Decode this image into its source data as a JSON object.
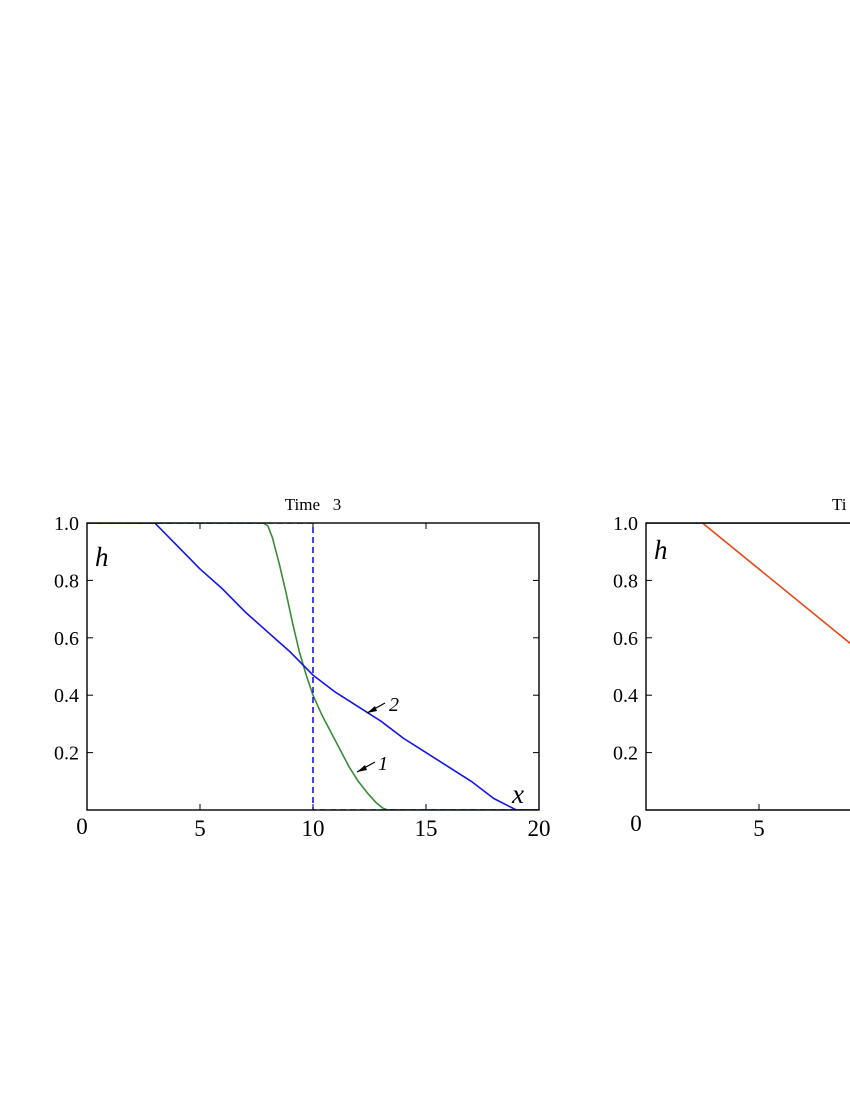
{
  "chart_data": [
    {
      "type": "line",
      "title": "Time   3",
      "xlabel": "x",
      "ylabel": "h",
      "xlim": [
        0,
        20
      ],
      "ylim": [
        0,
        1
      ],
      "x_ticks": [
        "0",
        "5",
        "10",
        "15",
        "20"
      ],
      "y_ticks": [
        "0.2",
        "0.4",
        "0.6",
        "0.8",
        "1.0"
      ],
      "grid": false,
      "series": [
        {
          "name": "1",
          "color": "#3a8a3a",
          "dash": "solid",
          "x": [
            0,
            7.8,
            8.0,
            8.2,
            8.5,
            8.8,
            9.1,
            9.4,
            9.7,
            10.0,
            10.4,
            10.8,
            11.2,
            11.6,
            12.0,
            12.4,
            12.8,
            13.1,
            13.3,
            13.5,
            20
          ],
          "y": [
            1.0,
            1.0,
            0.99,
            0.95,
            0.86,
            0.76,
            0.65,
            0.55,
            0.47,
            0.4,
            0.33,
            0.27,
            0.21,
            0.15,
            0.1,
            0.06,
            0.025,
            0.006,
            0.0,
            0.0,
            0.0
          ]
        },
        {
          "name": "2",
          "color": "#1414e6",
          "dash": "solid",
          "x": [
            0,
            3.0,
            4,
            5,
            6,
            7,
            8,
            9,
            10,
            11,
            12,
            13,
            14,
            15,
            16,
            17,
            18,
            19.0,
            20
          ],
          "y": [
            1.0,
            1.0,
            0.92,
            0.84,
            0.77,
            0.69,
            0.62,
            0.55,
            0.47,
            0.41,
            0.36,
            0.31,
            0.25,
            0.2,
            0.15,
            0.1,
            0.04,
            0.0,
            0.0
          ]
        },
        {
          "color": "#1414e6",
          "dash": "dashed",
          "x": [
            0,
            10,
            10,
            20
          ],
          "y": [
            1.0,
            1.0,
            0.0,
            0.0
          ]
        }
      ],
      "annotations": [
        "1",
        "2"
      ]
    },
    {
      "type": "line",
      "title": "Ti",
      "ylabel": "h",
      "xlim": [
        0,
        20
      ],
      "ylim": [
        0,
        1
      ],
      "x_ticks": [
        "0",
        "5"
      ],
      "y_ticks": [
        "0.2",
        "0.4",
        "0.6",
        "0.8",
        "1.0"
      ],
      "grid": false,
      "series": [
        {
          "color": "#1414e6",
          "dash": "solid",
          "x": [
            0,
            9.2
          ],
          "y": [
            1.0,
            1.0
          ]
        },
        {
          "color": "#e04a1a",
          "dash": "solid",
          "x": [
            2.5,
            9.2
          ],
          "y": [
            1.0,
            0.57
          ]
        }
      ]
    }
  ]
}
